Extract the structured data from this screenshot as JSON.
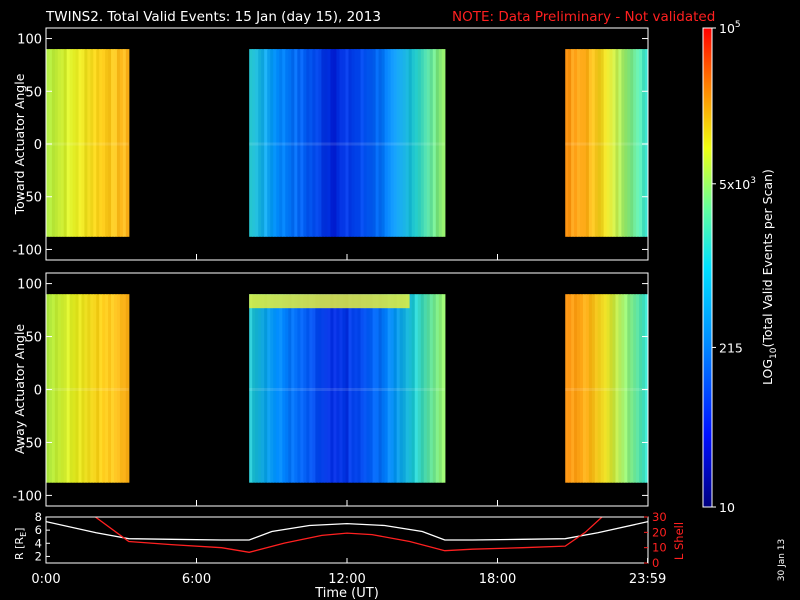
{
  "header": {
    "title": "TWINS2. Total Valid Events: 15 Jan (day  15), 2013",
    "note": "NOTE: Data Preliminary - Not validated"
  },
  "footer": {
    "date_stamp": "30 Jan 13"
  },
  "colors": {
    "background": "#000000",
    "foreground": "#ffffff",
    "note": "#ff2020",
    "lshell": "#ff2020",
    "radius": "#ffffff"
  },
  "chart_data": [
    {
      "type": "heatmap",
      "panel": "toward",
      "ylabel": "Toward Actuator Angle",
      "ylim": [
        -110,
        110
      ],
      "yticks": [
        "100",
        "50",
        "0",
        "-50",
        "-100"
      ],
      "xlim_hours": [
        0,
        24
      ],
      "data_extent_deg": [
        -88,
        90
      ],
      "segments": [
        {
          "start_h": 0.0,
          "end_h": 3.3,
          "level": "mid-high"
        },
        {
          "start_h": 8.1,
          "end_h": 15.9,
          "level": "low"
        },
        {
          "start_h": 20.7,
          "end_h": 24.0,
          "level": "high"
        }
      ]
    },
    {
      "type": "heatmap",
      "panel": "away",
      "ylabel": "Away Actuator Angle",
      "ylim": [
        -110,
        110
      ],
      "yticks": [
        "100",
        "50",
        "0",
        "-50",
        "-100"
      ],
      "xlim_hours": [
        0,
        24
      ],
      "data_extent_deg": [
        -88,
        90
      ],
      "segments": [
        {
          "start_h": 0.0,
          "end_h": 3.3,
          "level": "mid-high"
        },
        {
          "start_h": 8.1,
          "end_h": 15.9,
          "level": "low"
        },
        {
          "start_h": 20.7,
          "end_h": 24.0,
          "level": "high"
        }
      ]
    },
    {
      "type": "colorbar",
      "label": "LOG10(Total Valid Events per Scan)",
      "label_main": "LOG",
      "label_sub": "10",
      "label_rest": "(Total Valid Events per Scan)",
      "scale": "log",
      "range": [
        10,
        100000
      ],
      "ticks": [
        {
          "value": 100000,
          "label_base": "10",
          "label_exp": "5"
        },
        {
          "value": 5000,
          "label_base": "5x10",
          "label_exp": "3"
        },
        {
          "value": 215,
          "label_base": "215",
          "label_exp": ""
        },
        {
          "value": 10,
          "label_base": "10",
          "label_exp": ""
        }
      ]
    },
    {
      "type": "line",
      "panel": "orbit",
      "xlabel": "Time (UT)",
      "xticks": [
        {
          "h": 0,
          "label": "0:00"
        },
        {
          "h": 6,
          "label": "6:00"
        },
        {
          "h": 12,
          "label": "12:00"
        },
        {
          "h": 18,
          "label": "18:00"
        },
        {
          "h": 23.983,
          "label": "23:59"
        }
      ],
      "left_axis": {
        "label_main": "R [R",
        "label_sub": "E",
        "label_end": "]",
        "ylim": [
          1,
          8
        ],
        "ticks": [
          "8",
          "6",
          "4",
          "2"
        ]
      },
      "right_axis": {
        "label": "L Shell",
        "ylim": [
          0,
          30
        ],
        "ticks": [
          "30",
          "20",
          "10",
          "0"
        ]
      },
      "series": [
        {
          "axis": "left",
          "x": [
            0,
            2,
            3.3,
            5,
            7,
            8.1,
            9,
            10.5,
            12,
            13.5,
            15,
            15.9,
            17,
            19,
            20.7,
            22,
            24
          ],
          "y": [
            7.3,
            5.6,
            4.7,
            4.6,
            4.5,
            4.5,
            5.8,
            6.7,
            7.0,
            6.7,
            5.8,
            4.5,
            4.5,
            4.6,
            4.7,
            5.6,
            7.3
          ]
        },
        {
          "axis": "right",
          "x": [
            1.8,
            3.3,
            5,
            7,
            8.1,
            9.5,
            11,
            12,
            13,
            14.5,
            15.9,
            17,
            19,
            20.7,
            21.5,
            22.3
          ],
          "y": [
            32,
            14,
            12,
            10,
            7,
            13,
            18,
            19.5,
            18.5,
            14,
            8,
            9,
            10,
            11,
            20,
            32
          ]
        }
      ]
    }
  ]
}
